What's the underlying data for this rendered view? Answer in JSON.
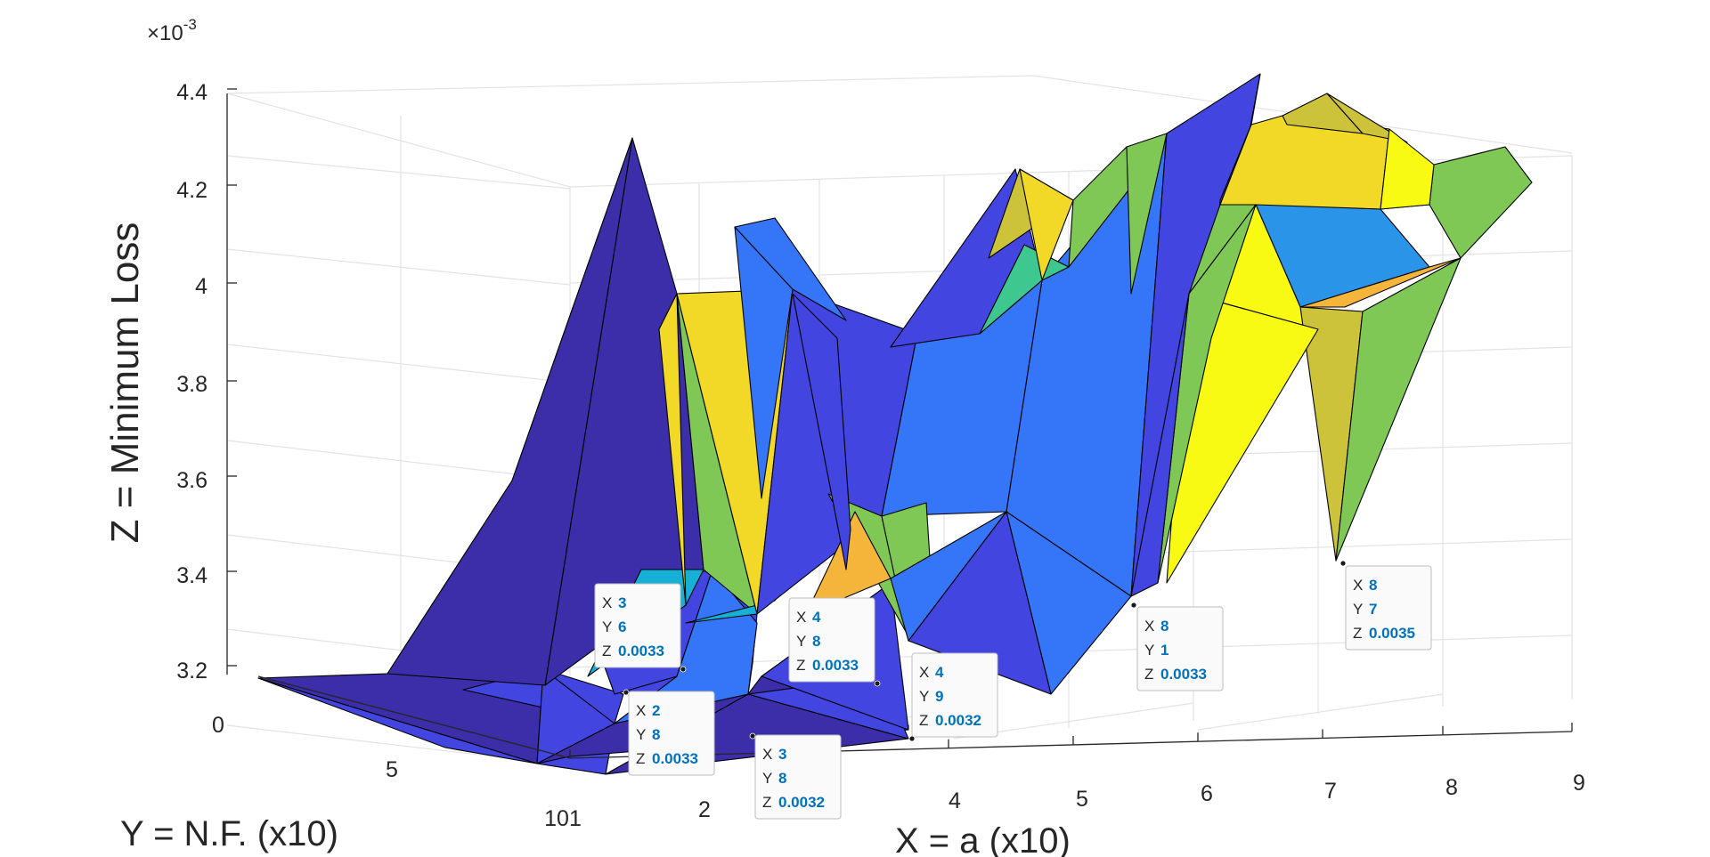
{
  "chart_data": {
    "type": "surface",
    "xlabel": "X = a (x10)",
    "ylabel": "Y = N.F. (x10)",
    "zlabel": "Z = Minimum Loss",
    "z_exponent_label": "×10",
    "z_exponent": "-3",
    "x_ticks": [
      "101",
      "2",
      "4",
      "5",
      "6",
      "7",
      "8",
      "9"
    ],
    "y_ticks": [
      "0",
      "5"
    ],
    "z_ticks": [
      "3.2",
      "3.4",
      "3.6",
      "3.8",
      "4",
      "4.2",
      "4.4"
    ],
    "zlim": [
      3.2,
      4.4
    ],
    "grid": true,
    "colormap": "parula",
    "datatips": [
      {
        "x": "3",
        "y": "6",
        "z": "0.0033"
      },
      {
        "x": "2",
        "y": "8",
        "z": "0.0033"
      },
      {
        "x": "3",
        "y": "8",
        "z": "0.0032"
      },
      {
        "x": "4",
        "y": "8",
        "z": "0.0033"
      },
      {
        "x": "4",
        "y": "9",
        "z": "0.0032"
      },
      {
        "x": "8",
        "y": "1",
        "z": "0.0033"
      },
      {
        "x": "8",
        "y": "7",
        "z": "0.0035"
      }
    ],
    "colors": {
      "c1": "#3b2ea8",
      "c2": "#4245e0",
      "c3": "#3575f7",
      "c4": "#2a95e8",
      "c5": "#16b0d6",
      "c6": "#3ec78f",
      "c7": "#80c855",
      "c8": "#ccc33a",
      "c9": "#f5b53a",
      "c10": "#f3d927",
      "c11": "#f8fa13",
      "tip_value": "#0072bd"
    }
  }
}
